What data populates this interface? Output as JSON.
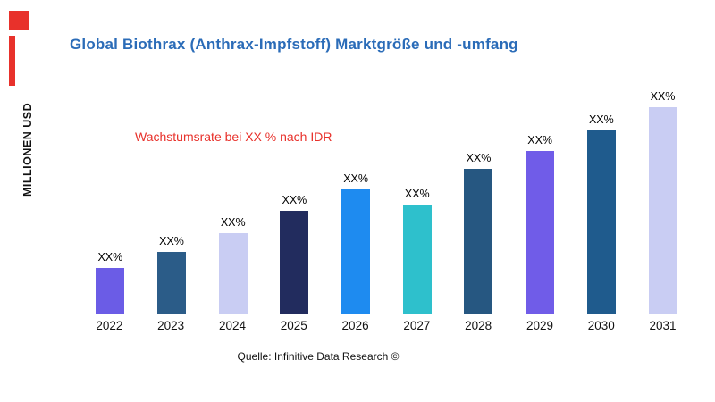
{
  "title": "Global Biothrax (Anthrax-Impfstoff) Marktgröße und -umfang",
  "annotation": "Wachstumsrate bei XX % nach IDR",
  "source": "Quelle: Infinitive Data Research ©",
  "colors": {
    "title": "#2b6cb8",
    "annotation": "#e8312b",
    "brand_accent": "#e8312b",
    "axis": "#000000"
  },
  "chart_data": {
    "type": "bar",
    "title": "Global Biothrax (Anthrax-Impfstoff) Marktgröße und -umfang",
    "categories": [
      "2022",
      "2023",
      "2024",
      "2025",
      "2026",
      "2027",
      "2028",
      "2029",
      "2030",
      "2031"
    ],
    "values": [
      22,
      30,
      39,
      50,
      60,
      53,
      70,
      79,
      89,
      100
    ],
    "value_labels": [
      "XX%",
      "XX%",
      "XX%",
      "XX%",
      "XX%",
      "XX%",
      "XX%",
      "XX%",
      "XX%",
      "XX%"
    ],
    "bar_colors": [
      "#6b5ce6",
      "#2b5c88",
      "#c9cdf3",
      "#222c5e",
      "#1e8bf0",
      "#2ec0cc",
      "#265781",
      "#705ce8",
      "#1f5b8d",
      "#c9cdf3"
    ],
    "xlabel": "",
    "ylabel": "MILLIONEN USD",
    "ylim": [
      0,
      110
    ],
    "grid": false,
    "legend": false,
    "annotation": "Wachstumsrate bei XX % nach IDR"
  }
}
